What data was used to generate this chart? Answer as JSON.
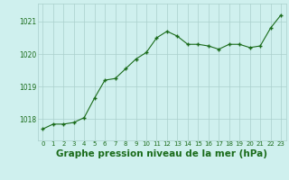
{
  "x": [
    0,
    1,
    2,
    3,
    4,
    5,
    6,
    7,
    8,
    9,
    10,
    11,
    12,
    13,
    14,
    15,
    16,
    17,
    18,
    19,
    20,
    21,
    22,
    23
  ],
  "y": [
    1017.7,
    1017.85,
    1017.85,
    1017.9,
    1018.05,
    1018.65,
    1019.2,
    1019.25,
    1019.55,
    1019.85,
    1020.05,
    1020.5,
    1020.7,
    1020.55,
    1020.3,
    1020.3,
    1020.25,
    1020.15,
    1020.3,
    1020.3,
    1020.2,
    1020.25,
    1020.8,
    1021.2
  ],
  "line_color": "#1a6b1a",
  "marker_color": "#1a6b1a",
  "bg_color": "#cff0ee",
  "grid_color": "#aacfcc",
  "title": "Graphe pression niveau de la mer (hPa)",
  "ylabel_ticks": [
    1018,
    1019,
    1020,
    1021
  ],
  "ylim": [
    1017.35,
    1021.55
  ],
  "xlim": [
    -0.5,
    23.5
  ],
  "title_color": "#1a6b1a",
  "title_fontsize": 7.5,
  "tick_fontsize": 5.5,
  "xtick_fontsize": 5.0
}
